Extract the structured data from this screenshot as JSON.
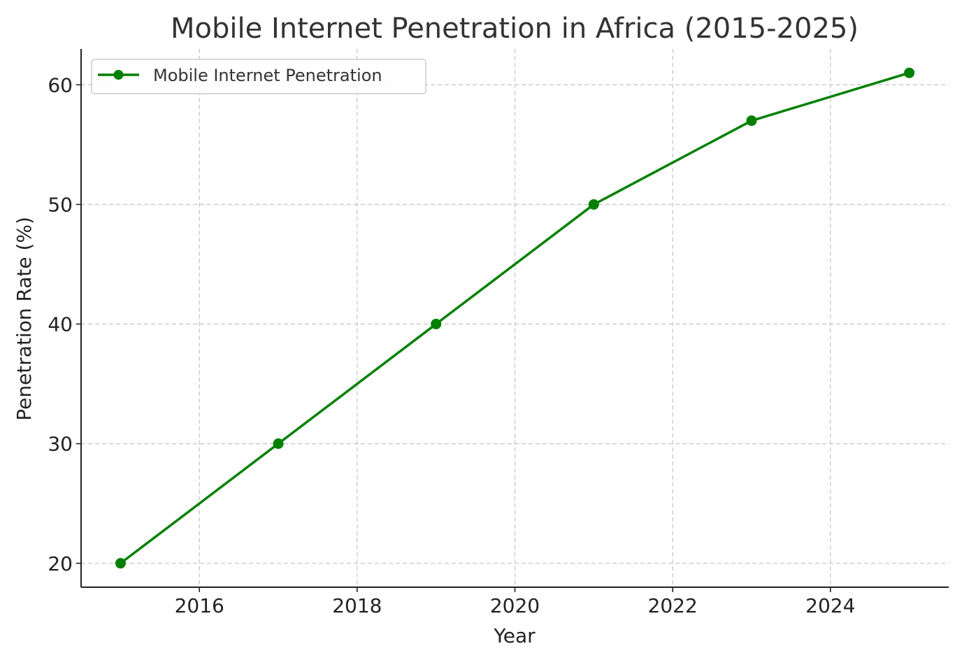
{
  "chart_data": {
    "type": "line",
    "title": "Mobile Internet Penetration in Africa (2015-2025)",
    "xlabel": "Year",
    "ylabel": "Penetration Rate (%)",
    "x_ticks": [
      2016,
      2018,
      2020,
      2022,
      2024
    ],
    "y_ticks": [
      20,
      30,
      40,
      50,
      60
    ],
    "x_tick_labels": [
      "2016",
      "2018",
      "2020",
      "2022",
      "2024"
    ],
    "y_tick_labels": [
      "20",
      "30",
      "40",
      "50",
      "60"
    ],
    "xlim": [
      2014.5,
      2025.5
    ],
    "ylim": [
      18,
      63
    ],
    "grid": true,
    "legend_position": "upper left",
    "series": [
      {
        "name": "Mobile Internet Penetration",
        "color": "#008000",
        "marker": "circle",
        "x": [
          2015,
          2017,
          2019,
          2021,
          2023,
          2025
        ],
        "values": [
          20,
          30,
          40,
          50,
          57,
          61
        ]
      }
    ]
  }
}
